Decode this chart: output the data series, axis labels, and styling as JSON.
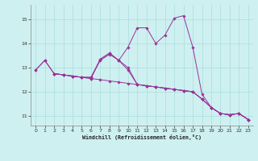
{
  "xlabel": "Windchill (Refroidissement éolien,°C)",
  "xlim": [
    -0.5,
    23.5
  ],
  "ylim": [
    10.6,
    15.6
  ],
  "yticks": [
    11,
    12,
    13,
    14,
    15
  ],
  "xticks": [
    0,
    1,
    2,
    3,
    4,
    5,
    6,
    7,
    8,
    9,
    10,
    11,
    12,
    13,
    14,
    15,
    16,
    17,
    18,
    19,
    20,
    21,
    22,
    23
  ],
  "bg_color": "#cef0f0",
  "grid_color": "#aadddd",
  "line_color": "#993399",
  "line1_x": [
    0,
    1,
    2,
    3,
    4,
    5,
    6,
    7,
    8,
    9,
    10,
    11,
    12,
    13,
    14,
    15,
    16,
    17,
    18,
    19,
    20,
    21,
    22,
    23
  ],
  "line1_y": [
    12.9,
    13.3,
    12.75,
    12.7,
    12.65,
    12.6,
    12.55,
    12.5,
    12.45,
    12.4,
    12.35,
    12.3,
    12.25,
    12.2,
    12.15,
    12.1,
    12.05,
    12.0,
    11.7,
    11.35,
    11.1,
    11.05,
    11.1,
    10.85
  ],
  "line2_x": [
    0,
    1,
    2,
    3,
    4,
    5,
    6,
    7,
    8,
    9,
    10,
    11,
    12,
    13,
    14,
    15,
    16,
    17,
    18,
    19,
    20,
    21,
    22,
    23
  ],
  "line2_y": [
    12.9,
    13.3,
    12.75,
    12.7,
    12.65,
    12.6,
    12.55,
    13.35,
    13.6,
    13.3,
    13.85,
    14.65,
    14.65,
    14.0,
    14.35,
    15.05,
    15.15,
    13.85,
    11.9,
    11.35,
    11.1,
    11.05,
    11.1,
    10.85
  ],
  "line3_x": [
    2,
    3,
    4,
    5,
    6,
    7,
    8,
    9,
    10,
    11,
    12,
    13,
    14,
    15,
    16,
    17,
    18,
    19,
    20,
    21,
    22,
    23
  ],
  "line3_y": [
    12.75,
    12.7,
    12.65,
    12.6,
    12.6,
    13.35,
    13.6,
    13.3,
    13.0,
    12.3,
    12.25,
    12.2,
    12.15,
    12.1,
    12.05,
    12.0,
    11.7,
    11.35,
    11.1,
    11.05,
    11.1,
    10.85
  ],
  "line4_x": [
    2,
    3,
    4,
    5,
    6,
    7,
    8,
    9,
    10,
    11,
    12,
    13,
    14,
    15,
    16,
    17,
    18,
    19,
    20,
    21,
    22,
    23
  ],
  "line4_y": [
    12.75,
    12.7,
    12.65,
    12.6,
    12.6,
    13.3,
    13.55,
    13.3,
    12.9,
    12.3,
    12.25,
    12.2,
    12.15,
    12.1,
    12.05,
    12.0,
    11.7,
    11.35,
    11.1,
    11.05,
    11.1,
    10.85
  ]
}
